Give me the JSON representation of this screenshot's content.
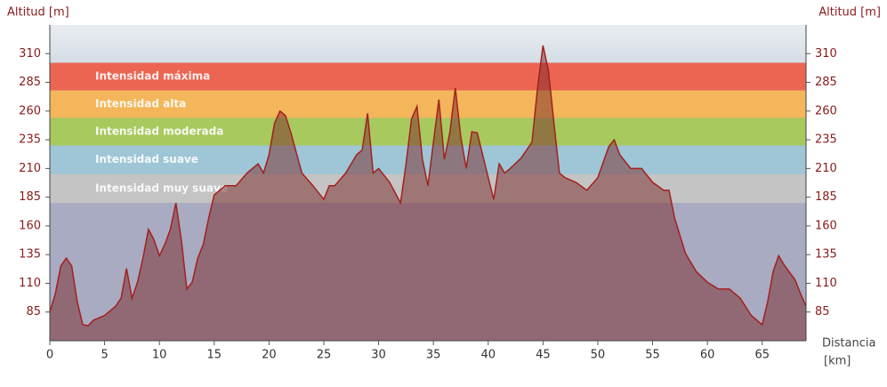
{
  "chart_data": {
    "type": "area",
    "y_label": "Altitud [m]",
    "x_label": "Distancia",
    "x_unit": "[km]",
    "xlim": [
      0,
      69
    ],
    "ylim": [
      60,
      335
    ],
    "xticks": [
      0,
      5,
      10,
      15,
      20,
      25,
      30,
      35,
      40,
      45,
      50,
      55,
      60,
      65
    ],
    "yticks": [
      85,
      110,
      135,
      160,
      185,
      210,
      235,
      260,
      285,
      310
    ],
    "color": "#a3201c",
    "zones": [
      {
        "name": "Intensidad máxima",
        "from": 278,
        "to": 302,
        "color": "#ec6553"
      },
      {
        "name": "Intensidad alta",
        "from": 254,
        "to": 278,
        "color": "#f3b65a"
      },
      {
        "name": "Intensidad moderada",
        "from": 230,
        "to": 254,
        "color": "#a8c95e"
      },
      {
        "name": "Intensidad suave",
        "from": 205,
        "to": 230,
        "color": "#9ec6d6"
      },
      {
        "name": "Intensidad muy suave",
        "from": 180,
        "to": 205,
        "color": "#c4c4c4"
      }
    ],
    "x": [
      0,
      0.5,
      1,
      1.5,
      2,
      2.5,
      3,
      3.5,
      4,
      5,
      6,
      6.5,
      7,
      7.5,
      8,
      8.5,
      9,
      9.5,
      10,
      10.5,
      11,
      11.5,
      12,
      12.5,
      13,
      13.5,
      14,
      14.5,
      15,
      16,
      17,
      18,
      19,
      19.5,
      20,
      20.5,
      21,
      21.5,
      22,
      23,
      24,
      25,
      25.5,
      26,
      27,
      28,
      28.5,
      29,
      29.5,
      30,
      31,
      32,
      32.5,
      33,
      33.5,
      34,
      34.5,
      35,
      35.5,
      36,
      36.5,
      37,
      37.5,
      38,
      38.5,
      39,
      40,
      40.5,
      41,
      41.5,
      42,
      43,
      43.5,
      44,
      44.5,
      45,
      45.5,
      46,
      46.5,
      47,
      48,
      49,
      50,
      51,
      51.5,
      52,
      53,
      54,
      55,
      56,
      56.5,
      57,
      58,
      59,
      60,
      61,
      62,
      63,
      64,
      65,
      65.5,
      66,
      66.5,
      67,
      68,
      68.5,
      69
    ],
    "values": [
      85,
      101,
      125,
      132,
      125,
      94,
      74,
      73,
      78,
      82,
      90,
      97,
      123,
      97,
      111,
      132,
      157,
      148,
      134,
      144,
      157,
      180,
      148,
      105,
      111,
      132,
      144,
      167,
      187,
      195,
      195,
      206,
      214,
      206,
      222,
      249,
      260,
      256,
      241,
      206,
      195,
      183,
      195,
      195,
      206,
      222,
      226,
      258,
      206,
      210,
      198,
      180,
      214,
      253,
      264,
      218,
      195,
      233,
      270,
      218,
      241,
      280,
      237,
      210,
      242,
      241,
      202,
      183,
      214,
      206,
      210,
      219,
      226,
      233,
      280,
      317,
      295,
      249,
      206,
      202,
      198,
      191,
      202,
      229,
      235,
      222,
      210,
      210,
      198,
      191,
      191,
      167,
      136,
      120,
      111,
      105,
      105,
      97,
      82,
      74,
      94,
      120,
      134,
      126,
      113,
      101,
      90
    ]
  }
}
